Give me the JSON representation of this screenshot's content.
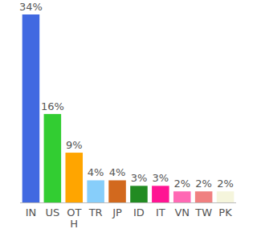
{
  "chart_data": {
    "type": "bar",
    "categories": [
      "IN",
      "US",
      "OTH",
      "TR",
      "JP",
      "ID",
      "IT",
      "VN",
      "TW",
      "PK"
    ],
    "values": [
      34,
      16,
      9,
      4,
      4,
      3,
      3,
      2,
      2,
      2
    ],
    "value_labels": [
      "34%",
      "16%",
      "9%",
      "4%",
      "4%",
      "3%",
      "3%",
      "2%",
      "2%",
      "2%"
    ],
    "colors": [
      "#4169e1",
      "#32cd32",
      "#ffa500",
      "#87cefa",
      "#d2691e",
      "#228b22",
      "#ff1493",
      "#ff69b4",
      "#f08080",
      "#f5f5dc"
    ],
    "ylim": [
      0,
      34
    ],
    "data_labels": true,
    "grid": false,
    "tick_labels": "x"
  }
}
